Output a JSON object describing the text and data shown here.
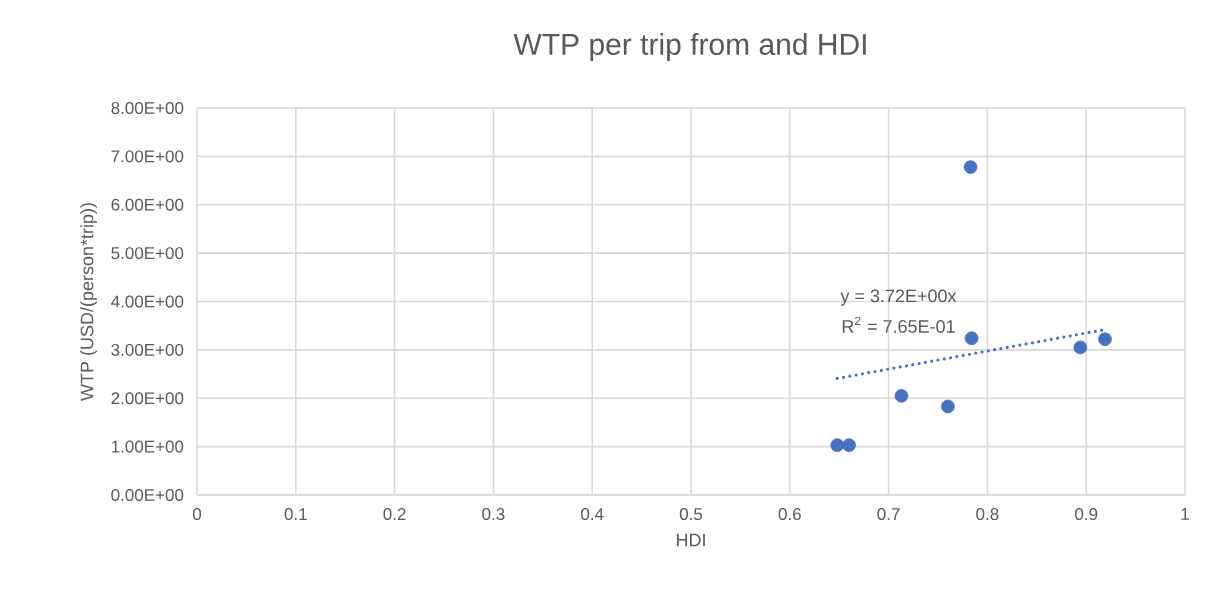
{
  "chart_data": {
    "type": "scatter",
    "title": "WTP per trip from and HDI",
    "xlabel": "HDI",
    "ylabel": "WTP (USD/(person*trip))",
    "xlim": [
      0,
      1
    ],
    "ylim": [
      0,
      8
    ],
    "xticks": [
      0,
      0.1,
      0.2,
      0.3,
      0.4,
      0.5,
      0.6,
      0.7,
      0.8,
      0.9,
      1
    ],
    "yticks": [
      {
        "value": 0,
        "label": "0.00E+00"
      },
      {
        "value": 1,
        "label": "1.00E+00"
      },
      {
        "value": 2,
        "label": "2.00E+00"
      },
      {
        "value": 3,
        "label": "3.00E+00"
      },
      {
        "value": 4,
        "label": "4.00E+00"
      },
      {
        "value": 5,
        "label": "5.00E+00"
      },
      {
        "value": 6,
        "label": "6.00E+00"
      },
      {
        "value": 7,
        "label": "7.00E+00"
      },
      {
        "value": 8,
        "label": "8.00E+00"
      }
    ],
    "grid": true,
    "series": [
      {
        "color": "#4472c4",
        "marker": "circle",
        "x": [
          0.648,
          0.66,
          0.713,
          0.76,
          0.783,
          0.784,
          0.894,
          0.919
        ],
        "values": [
          1.03,
          1.03,
          2.05,
          1.83,
          6.78,
          3.24,
          3.05,
          3.22
        ]
      },
      {
        "type": "line",
        "color": "#4472c4",
        "marker": "none",
        "line_style": "dotted",
        "x": [
          0.648,
          0.919
        ],
        "values": [
          2.41,
          3.42
        ]
      }
    ],
    "annotations": [
      "y = 3.72E+00x",
      "R$^{2}$ = 7.65E-01"
    ]
  }
}
